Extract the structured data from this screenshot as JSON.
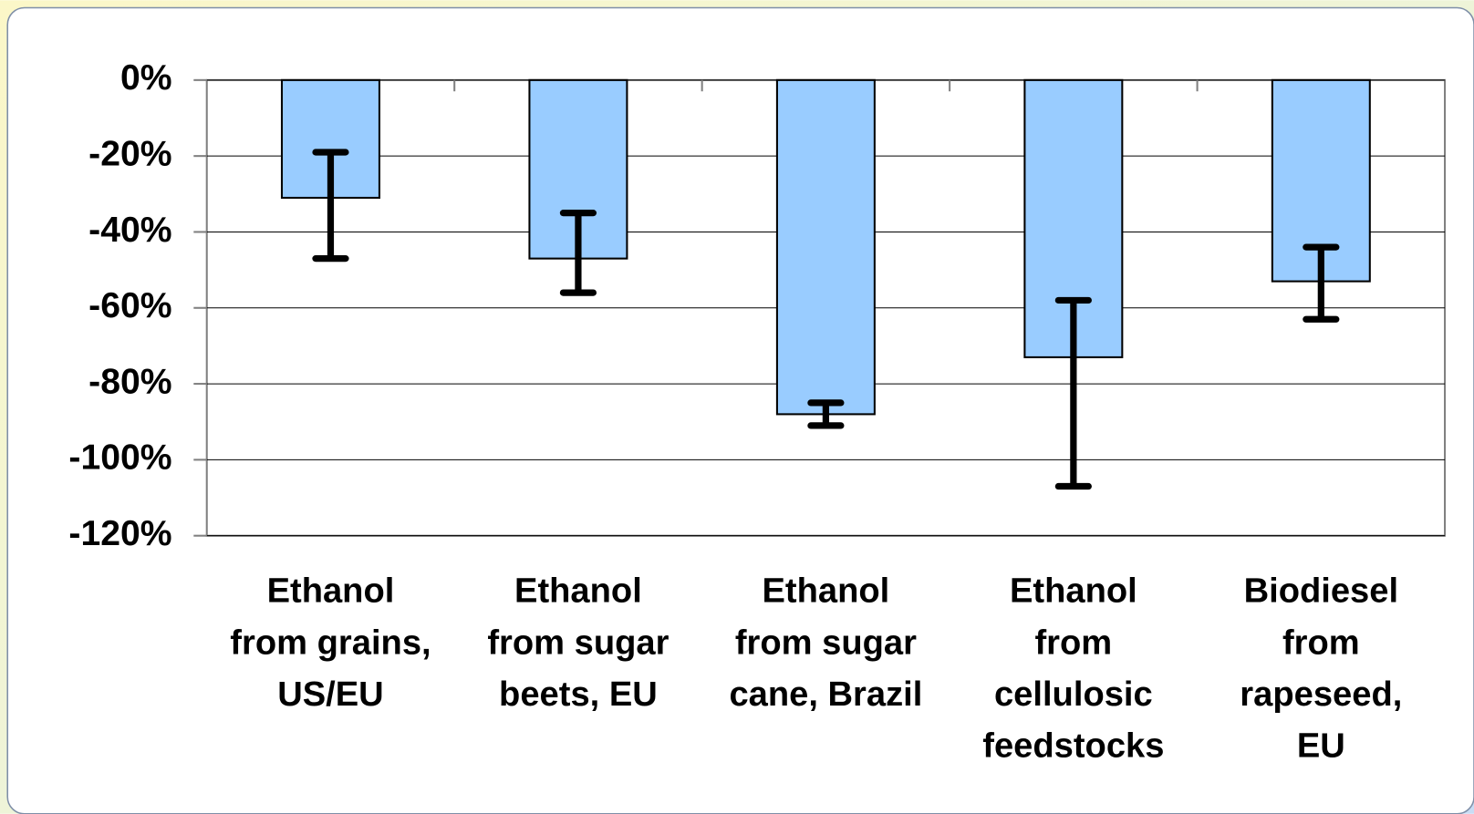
{
  "chart_data": {
    "type": "bar",
    "categories": [
      [
        "Ethanol",
        "from grains,",
        "US/EU"
      ],
      [
        "Ethanol",
        "from sugar",
        "beets, EU"
      ],
      [
        "Ethanol",
        "from sugar",
        "cane, Brazil"
      ],
      [
        "Ethanol",
        "from",
        "cellulosic",
        "feedstocks"
      ],
      [
        "Biodiesel",
        "from",
        "rapeseed,",
        "EU"
      ]
    ],
    "values": [
      -31,
      -47,
      -88,
      -73,
      -53
    ],
    "error_high": [
      -19,
      -35,
      -85,
      -58,
      -44
    ],
    "error_low": [
      -47,
      -56,
      -91,
      -107,
      -63
    ],
    "color": "#99ccff",
    "ylim": [
      -120,
      0
    ],
    "yticks": [
      {
        "value": 0,
        "label": "0%"
      },
      {
        "value": -20,
        "label": "-20%"
      },
      {
        "value": -40,
        "label": "-40%"
      },
      {
        "value": -60,
        "label": "-60%"
      },
      {
        "value": -80,
        "label": "-80%"
      },
      {
        "value": -100,
        "label": "-100%"
      },
      {
        "value": -120,
        "label": "-120%"
      }
    ],
    "grid": true
  }
}
